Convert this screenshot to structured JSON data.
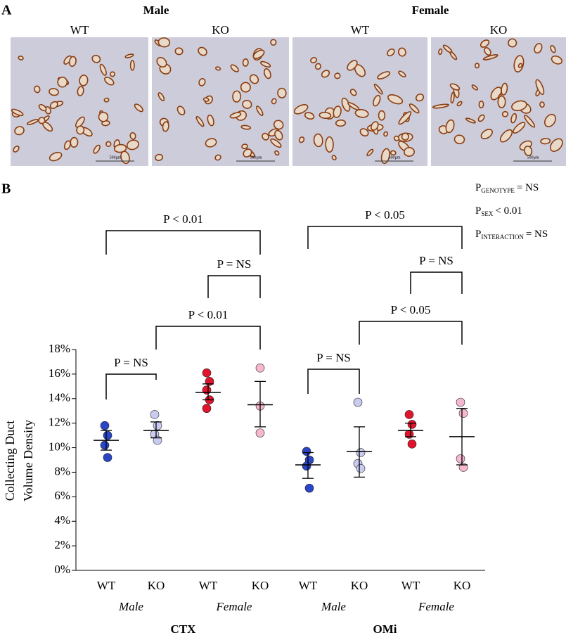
{
  "panel_a": {
    "label": "A",
    "groups": [
      "Male",
      "Female"
    ],
    "images": [
      {
        "label": "WT",
        "scale": "500µm"
      },
      {
        "label": "KO",
        "scale": "500µm"
      },
      {
        "label": "WT",
        "scale": "500µm"
      },
      {
        "label": "KO",
        "scale": "500µm"
      }
    ]
  },
  "chart_data": {
    "type": "strip",
    "panel_label": "B",
    "ylabel_lines": [
      "Collecting Duct",
      "Volume Density"
    ],
    "ylim": [
      0,
      18
    ],
    "yticks": [
      {
        "value": 0,
        "label": "0%"
      },
      {
        "value": 2,
        "label": "2%"
      },
      {
        "value": 4,
        "label": "4%"
      },
      {
        "value": 6,
        "label": "6%"
      },
      {
        "value": 8,
        "label": "8%"
      },
      {
        "value": 10,
        "label": "10%"
      },
      {
        "value": 12,
        "label": "12%"
      },
      {
        "value": 14,
        "label": "14%"
      },
      {
        "value": 16,
        "label": "16%"
      },
      {
        "value": 18,
        "label": "18%"
      }
    ],
    "categories": [
      "WT",
      "KO",
      "WT",
      "KO",
      "WT",
      "KO",
      "WT",
      "KO"
    ],
    "sex_labels": [
      "Male",
      "Female",
      "Male",
      "Female"
    ],
    "region_labels": [
      "CTX",
      "OMi"
    ],
    "series": [
      {
        "color": "#2b45c9",
        "values": [
          11.8,
          11.0,
          10.2,
          9.2
        ],
        "mean": 10.6,
        "err_low": 9.8,
        "err_high": 11.4
      },
      {
        "color": "#c9ccf0",
        "values": [
          12.7,
          11.8,
          11.1,
          10.6
        ],
        "mean": 11.4,
        "err_low": 10.8,
        "err_high": 12.1
      },
      {
        "color": "#e0142c",
        "values": [
          16.1,
          15.4,
          14.7,
          13.9,
          13.2
        ],
        "mean": 14.5,
        "err_low": 13.9,
        "err_high": 15.2
      },
      {
        "color": "#f6b8d0",
        "values": [
          16.5,
          13.4,
          11.2
        ],
        "mean": 13.5,
        "err_low": 11.7,
        "err_high": 15.4
      },
      {
        "color": "#2b45c9",
        "values": [
          9.7,
          9.0,
          8.5,
          6.7
        ],
        "mean": 8.6,
        "err_low": 7.5,
        "err_high": 9.6
      },
      {
        "color": "#c9ccf0",
        "values": [
          13.7,
          9.6,
          8.7,
          8.3
        ],
        "mean": 9.7,
        "err_low": 7.6,
        "err_high": 11.7
      },
      {
        "color": "#e0142c",
        "values": [
          12.7,
          11.9,
          11.1,
          10.3
        ],
        "mean": 11.4,
        "err_low": 10.9,
        "err_high": 12.0
      },
      {
        "color": "#f6b8d0",
        "values": [
          13.7,
          12.8,
          9.1,
          8.4
        ],
        "mean": 10.9,
        "err_low": 8.6,
        "err_high": 13.2
      }
    ],
    "comparisons": [
      "P = NS",
      "P < 0.01",
      "P = NS",
      "P < 0.01",
      "P = NS",
      "P < 0.05",
      "P = NS",
      "P < 0.05"
    ],
    "stats": [
      {
        "p": "P",
        "sub": "GENOTYPE",
        "text": "= NS"
      },
      {
        "p": "P",
        "sub": "SEX",
        "text": "< 0.01"
      },
      {
        "p": "P",
        "sub": "INTERACTION",
        "text": "= NS"
      }
    ]
  }
}
